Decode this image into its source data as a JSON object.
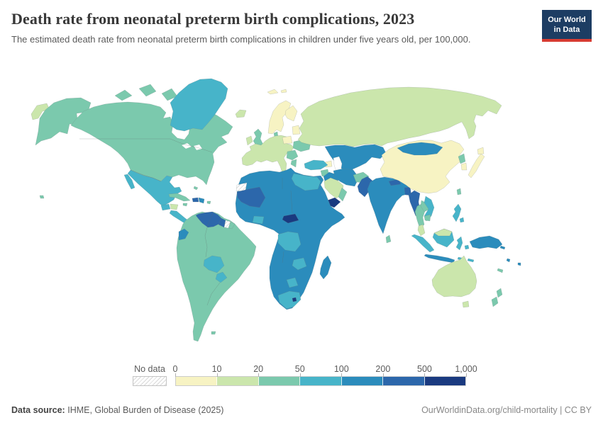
{
  "header": {
    "title": "Death rate from neonatal preterm birth complications, 2023",
    "subtitle": "The estimated death rate from neonatal preterm birth complications in children under five years old, per 100,000.",
    "logo": {
      "line1": "Our World",
      "line2": "in Data",
      "bg": "#1d3d63",
      "stripe": "#d73c32"
    }
  },
  "legend": {
    "no_data_label": "No data",
    "ticks": [
      "0",
      "10",
      "20",
      "50",
      "100",
      "200",
      "500",
      "1,000"
    ],
    "bins": [
      {
        "range": "0-10",
        "color_key": "c0"
      },
      {
        "range": "10-20",
        "color_key": "c1"
      },
      {
        "range": "20-50",
        "color_key": "c2"
      },
      {
        "range": "50-100",
        "color_key": "c3"
      },
      {
        "range": "100-200",
        "color_key": "c4"
      },
      {
        "range": "200-500",
        "color_key": "c5"
      },
      {
        "range": "500-1,000",
        "color_key": "c6"
      }
    ]
  },
  "map": {
    "palette": {
      "c0": "#f7f3c3",
      "c1": "#cbe6ac",
      "c2": "#7bc9ad",
      "c3": "#47b4c9",
      "c4": "#2b8cbc",
      "c5": "#2c67ab",
      "c6": "#1a3a80"
    },
    "region_fills": {
      "chukotka": "c1",
      "alaska": "c2",
      "canada_us": "c2",
      "canada_arctic": "c2",
      "greenland": "c3",
      "mexico": "c3",
      "guatemala": "c3",
      "honduras": "c1",
      "central_america_south": "c3",
      "cuba": "c2",
      "haiti": "c5",
      "dominican_republic": "c4",
      "jamaica": "c2",
      "puerto_rico": "c2",
      "bahamas": "c2",
      "hawaii": "c2",
      "south_america": "c2",
      "venezuela": "c5",
      "guyana": "c5",
      "suriname": "no_data",
      "french_guiana": "c2",
      "ecuador": "c4",
      "bolivia": "c3",
      "paraguay": "c3",
      "falklands": "c2",
      "iceland": "c1",
      "norway_sweden": "c0",
      "finland": "c0",
      "svalbard": "c0",
      "baltics": "c0",
      "uk": "c2",
      "ireland": "c1",
      "denmark": "c2",
      "europe_west": "c1",
      "poland": "c0",
      "ukraine": "c2",
      "balkans": "c2",
      "greece": "c2",
      "russia": "c1",
      "central_asia": "c4",
      "azerbaijan": "c0",
      "turkey": "c3",
      "syria": "c2",
      "jordan_israel": "c1",
      "iraq": "c4",
      "iran": "c4",
      "afghanistan": "c2",
      "pakistan": "c5",
      "saudi_arabia": "c1",
      "yemen": "c6",
      "oman": "c2",
      "africa": "c4",
      "western_sahara": "no_data",
      "mauritania_mali": "c5",
      "central_african_republic": "c6",
      "egypt_libya": "c3",
      "congo_basin": "c3",
      "ghana_ivory_coast": "c3",
      "zambia": "c3",
      "botswana": "c3",
      "south_africa": "c3",
      "lesotho": "c6",
      "madagascar": "c4",
      "india": "c4",
      "sri_lanka": "c2",
      "nepal": "c5",
      "bangladesh": "c5",
      "china": "c0",
      "mongolia": "c4",
      "north_korea": "c2",
      "south_korea": "c0",
      "japan": "c0",
      "taiwan": "c2",
      "myanmar": "c5",
      "thailand": "c2",
      "laos": "c2",
      "vietnam": "c3",
      "cambodia": "c2",
      "malaysia_peninsula": "c1",
      "malaysia_borneo": "c1",
      "borneo_indonesia": "c3",
      "sumatra": "c3",
      "java": "c4",
      "sulawesi": "c3",
      "lesser_sunda": "c3",
      "maluku": "c3",
      "philippines": "c3",
      "new_guinea": "c4",
      "solomon": "c4",
      "vanuatu": "c4",
      "fiji": "c4",
      "new_caledonia": "c2",
      "australia": "c1",
      "tasmania": "c1",
      "new_zealand": "c2"
    }
  },
  "footer": {
    "source_label": "Data source:",
    "source_text": "IHME, Global Burden of Disease (2025)",
    "url": "OurWorldinData.org/child-mortality",
    "separator": "|",
    "license": "CC BY"
  }
}
